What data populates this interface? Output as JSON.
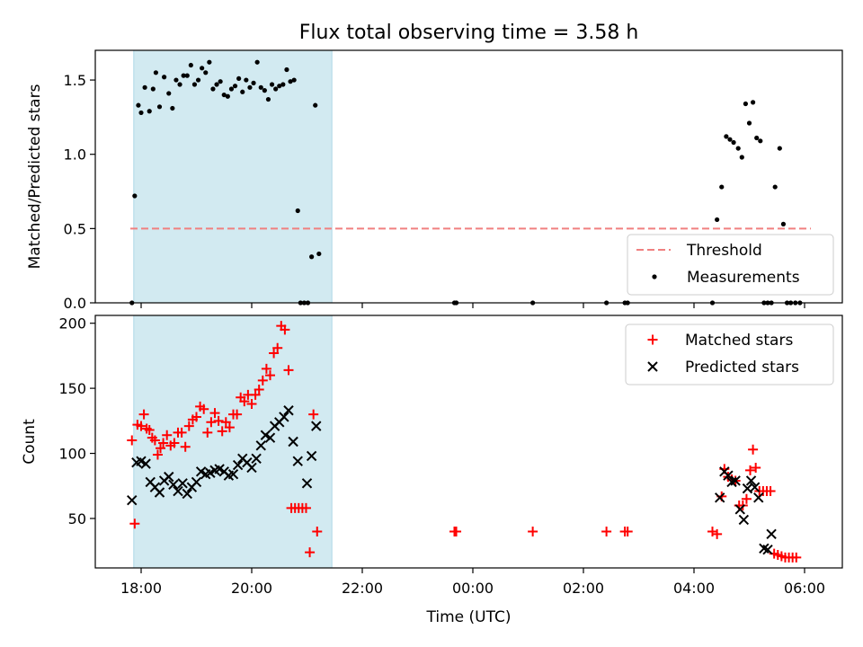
{
  "chart_data": [
    {
      "type": "scatter",
      "title": "Flux total observing time = 3.58 h",
      "ylabel": "Matched/Predicted stars",
      "xlabel": "",
      "ylim": [
        0,
        1.7
      ],
      "yticks": [
        0.0,
        0.5,
        1.0,
        1.5
      ],
      "ytick_labels": [
        "0.0",
        "0.5",
        "1.0",
        "1.5"
      ],
      "shaded_interval": [
        "17:52",
        "21:27"
      ],
      "shade_color": "#add8e6",
      "threshold": {
        "name": "Threshold",
        "value": 0.5,
        "color": "#f08080",
        "style": "dashed"
      },
      "legend_position": "lower-right",
      "series": [
        {
          "name": "Measurements",
          "marker": "dot",
          "color": "#000000",
          "points": [
            [
              "17:50",
              0.0
            ],
            [
              "17:53",
              0.72
            ],
            [
              "17:57",
              1.33
            ],
            [
              "18:00",
              1.28
            ],
            [
              "18:04",
              1.45
            ],
            [
              "18:09",
              1.29
            ],
            [
              "18:13",
              1.44
            ],
            [
              "18:16",
              1.55
            ],
            [
              "18:20",
              1.32
            ],
            [
              "18:25",
              1.52
            ],
            [
              "18:30",
              1.41
            ],
            [
              "18:34",
              1.31
            ],
            [
              "18:38",
              1.5
            ],
            [
              "18:42",
              1.47
            ],
            [
              "18:46",
              1.53
            ],
            [
              "18:50",
              1.53
            ],
            [
              "18:54",
              1.6
            ],
            [
              "18:58",
              1.47
            ],
            [
              "19:02",
              1.5
            ],
            [
              "19:06",
              1.58
            ],
            [
              "19:10",
              1.55
            ],
            [
              "19:14",
              1.62
            ],
            [
              "19:18",
              1.44
            ],
            [
              "19:22",
              1.47
            ],
            [
              "19:26",
              1.49
            ],
            [
              "19:30",
              1.4
            ],
            [
              "19:34",
              1.39
            ],
            [
              "19:38",
              1.44
            ],
            [
              "19:42",
              1.46
            ],
            [
              "19:46",
              1.51
            ],
            [
              "19:50",
              1.42
            ],
            [
              "19:54",
              1.5
            ],
            [
              "19:58",
              1.45
            ],
            [
              "20:02",
              1.48
            ],
            [
              "20:06",
              1.62
            ],
            [
              "20:10",
              1.45
            ],
            [
              "20:14",
              1.43
            ],
            [
              "20:18",
              1.37
            ],
            [
              "20:22",
              1.47
            ],
            [
              "20:26",
              1.44
            ],
            [
              "20:30",
              1.46
            ],
            [
              "20:34",
              1.47
            ],
            [
              "20:38",
              1.57
            ],
            [
              "20:42",
              1.49
            ],
            [
              "20:46",
              1.5
            ],
            [
              "20:50",
              0.62
            ],
            [
              "20:53",
              0.0
            ],
            [
              "20:57",
              0.0
            ],
            [
              "21:01",
              0.0
            ],
            [
              "21:05",
              0.31
            ],
            [
              "21:09",
              1.33
            ],
            [
              "21:13",
              0.33
            ],
            [
              "23:40",
              0.0
            ],
            [
              "23:42",
              0.0
            ],
            [
              "01:05",
              0.0
            ],
            [
              "02:25",
              0.0
            ],
            [
              "02:45",
              0.0
            ],
            [
              "02:48",
              0.0
            ],
            [
              "04:20",
              0.0
            ],
            [
              "04:25",
              0.56
            ],
            [
              "04:30",
              0.78
            ],
            [
              "04:35",
              1.12
            ],
            [
              "04:39",
              1.1
            ],
            [
              "04:43",
              1.08
            ],
            [
              "04:48",
              1.04
            ],
            [
              "04:52",
              0.98
            ],
            [
              "04:56",
              1.34
            ],
            [
              "05:00",
              1.21
            ],
            [
              "05:04",
              1.35
            ],
            [
              "05:08",
              1.11
            ],
            [
              "05:12",
              1.09
            ],
            [
              "05:16",
              0.0
            ],
            [
              "05:20",
              0.0
            ],
            [
              "05:24",
              0.0
            ],
            [
              "05:28",
              0.78
            ],
            [
              "05:33",
              1.04
            ],
            [
              "05:37",
              0.53
            ],
            [
              "05:41",
              0.0
            ],
            [
              "05:45",
              0.0
            ],
            [
              "05:50",
              0.0
            ],
            [
              "05:55",
              0.0
            ]
          ]
        }
      ]
    },
    {
      "type": "scatter",
      "title": "",
      "ylabel": "Count",
      "xlabel": "Time (UTC)",
      "ylim": [
        12,
        206
      ],
      "yticks": [
        50,
        100,
        150,
        200
      ],
      "ytick_labels": [
        "50",
        "100",
        "150",
        "200"
      ],
      "xticks": [
        "18:00",
        "20:00",
        "22:00",
        "00:00",
        "02:00",
        "04:00",
        "06:00"
      ],
      "shaded_interval": [
        "17:52",
        "21:27"
      ],
      "shade_color": "#add8e6",
      "legend_position": "top-right",
      "series": [
        {
          "name": "Matched stars",
          "marker": "plus",
          "color": "#ff0000",
          "points": [
            [
              "17:50",
              110
            ],
            [
              "17:53",
              46
            ],
            [
              "17:56",
              122
            ],
            [
              "18:00",
              121
            ],
            [
              "18:03",
              130
            ],
            [
              "18:06",
              119
            ],
            [
              "18:09",
              118
            ],
            [
              "18:12",
              112
            ],
            [
              "18:15",
              110
            ],
            [
              "18:18",
              99
            ],
            [
              "18:21",
              104
            ],
            [
              "18:24",
              108
            ],
            [
              "18:28",
              114
            ],
            [
              "18:32",
              106
            ],
            [
              "18:36",
              108
            ],
            [
              "18:40",
              116
            ],
            [
              "18:44",
              116
            ],
            [
              "18:48",
              105
            ],
            [
              "18:52",
              121
            ],
            [
              "18:56",
              126
            ],
            [
              "19:00",
              128
            ],
            [
              "19:04",
              136
            ],
            [
              "19:08",
              134
            ],
            [
              "19:12",
              116
            ],
            [
              "19:16",
              124
            ],
            [
              "19:20",
              131
            ],
            [
              "19:24",
              125
            ],
            [
              "19:28",
              117
            ],
            [
              "19:32",
              124
            ],
            [
              "19:36",
              120
            ],
            [
              "19:40",
              130
            ],
            [
              "19:44",
              130
            ],
            [
              "19:48",
              143
            ],
            [
              "19:52",
              140
            ],
            [
              "19:56",
              145
            ],
            [
              "20:00",
              138
            ],
            [
              "20:04",
              145
            ],
            [
              "20:08",
              149
            ],
            [
              "20:12",
              156
            ],
            [
              "20:16",
              165
            ],
            [
              "20:20",
              160
            ],
            [
              "20:24",
              177
            ],
            [
              "20:28",
              181
            ],
            [
              "20:32",
              198
            ],
            [
              "20:36",
              195
            ],
            [
              "20:40",
              164
            ],
            [
              "20:43",
              58
            ],
            [
              "20:47",
              58
            ],
            [
              "20:51",
              58
            ],
            [
              "20:55",
              58
            ],
            [
              "20:59",
              58
            ],
            [
              "21:03",
              24
            ],
            [
              "21:07",
              130
            ],
            [
              "21:11",
              40
            ],
            [
              "23:40",
              40
            ],
            [
              "23:42",
              40
            ],
            [
              "01:05",
              40
            ],
            [
              "02:25",
              40
            ],
            [
              "02:45",
              40
            ],
            [
              "02:48",
              40
            ],
            [
              "04:20",
              40
            ],
            [
              "04:25",
              38
            ],
            [
              "04:30",
              67
            ],
            [
              "04:33",
              88
            ],
            [
              "04:37",
              82
            ],
            [
              "04:41",
              80
            ],
            [
              "04:45",
              79
            ],
            [
              "04:49",
              60
            ],
            [
              "04:53",
              60
            ],
            [
              "04:57",
              65
            ],
            [
              "05:01",
              87
            ],
            [
              "05:04",
              103
            ],
            [
              "05:07",
              89
            ],
            [
              "05:11",
              71
            ],
            [
              "05:15",
              71
            ],
            [
              "05:19",
              71
            ],
            [
              "05:23",
              71
            ],
            [
              "05:27",
              23
            ],
            [
              "05:31",
              22
            ],
            [
              "05:35",
              21
            ],
            [
              "05:39",
              20
            ],
            [
              "05:43",
              20
            ],
            [
              "05:47",
              20
            ],
            [
              "05:51",
              20
            ]
          ]
        },
        {
          "name": "Predicted stars",
          "marker": "x",
          "color": "#000000",
          "points": [
            [
              "17:50",
              64
            ],
            [
              "17:55",
              93
            ],
            [
              "18:00",
              94
            ],
            [
              "18:05",
              92
            ],
            [
              "18:10",
              78
            ],
            [
              "18:15",
              74
            ],
            [
              "18:20",
              70
            ],
            [
              "18:25",
              79
            ],
            [
              "18:30",
              82
            ],
            [
              "18:35",
              76
            ],
            [
              "18:40",
              71
            ],
            [
              "18:45",
              77
            ],
            [
              "18:50",
              69
            ],
            [
              "18:55",
              74
            ],
            [
              "19:00",
              78
            ],
            [
              "19:05",
              86
            ],
            [
              "19:10",
              84
            ],
            [
              "19:15",
              85
            ],
            [
              "19:20",
              87
            ],
            [
              "19:25",
              88
            ],
            [
              "19:30",
              86
            ],
            [
              "19:35",
              83
            ],
            [
              "19:40",
              84
            ],
            [
              "19:45",
              91
            ],
            [
              "19:50",
              96
            ],
            [
              "19:55",
              93
            ],
            [
              "20:00",
              89
            ],
            [
              "20:05",
              96
            ],
            [
              "20:10",
              106
            ],
            [
              "20:15",
              114
            ],
            [
              "20:20",
              112
            ],
            [
              "20:25",
              121
            ],
            [
              "20:30",
              124
            ],
            [
              "20:35",
              128
            ],
            [
              "20:40",
              133
            ],
            [
              "20:45",
              109
            ],
            [
              "20:50",
              94
            ],
            [
              "21:00",
              77
            ],
            [
              "21:05",
              98
            ],
            [
              "21:10",
              121
            ],
            [
              "04:28",
              66
            ],
            [
              "04:33",
              86
            ],
            [
              "04:37",
              83
            ],
            [
              "04:41",
              78
            ],
            [
              "04:45",
              79
            ],
            [
              "04:50",
              57
            ],
            [
              "04:54",
              49
            ],
            [
              "04:58",
              73
            ],
            [
              "05:02",
              79
            ],
            [
              "05:06",
              74
            ],
            [
              "05:10",
              66
            ],
            [
              "05:16",
              27
            ],
            [
              "05:20",
              26
            ],
            [
              "05:24",
              38
            ]
          ]
        }
      ]
    }
  ]
}
